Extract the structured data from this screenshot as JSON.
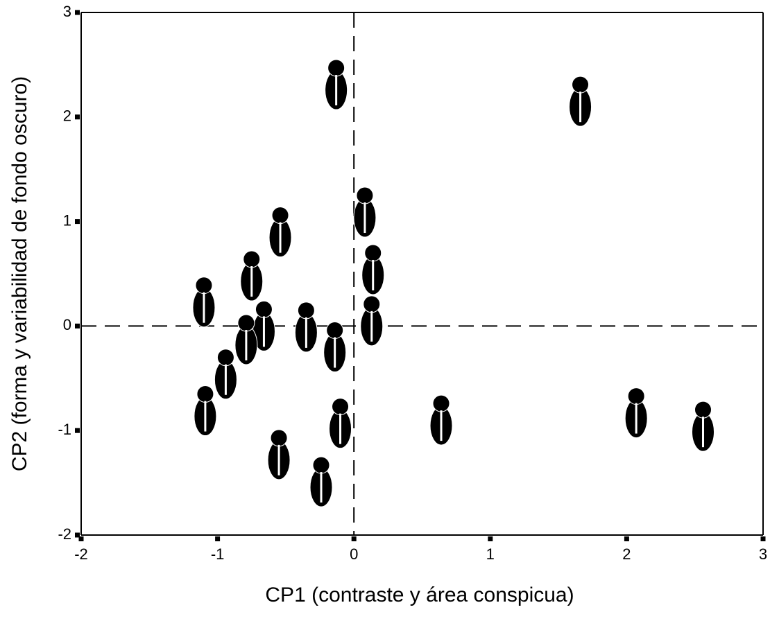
{
  "chart_data": {
    "type": "scatter",
    "x_label": "CP1 (contraste y área conspicua)",
    "y_label": "CP2 (forma y variabilidad de fondo oscuro)",
    "xlim": [
      -2,
      3
    ],
    "ylim": [
      -2,
      3
    ],
    "xticks": [
      -2,
      -1,
      0,
      1,
      2,
      3
    ],
    "yticks": [
      -2,
      -1,
      0,
      1,
      2,
      3
    ],
    "reference_x": 0,
    "reference_y": 0,
    "color": "#000000",
    "series": [
      {
        "x": [
          -0.13,
          1.66,
          -0.54,
          0.08,
          -0.75,
          0.14,
          -1.1,
          -0.35,
          -0.66,
          -0.79,
          0.13,
          -0.14,
          -0.94,
          -1.09,
          -0.1,
          -0.55,
          -0.24,
          0.64,
          2.07,
          2.56
        ],
        "values": [
          2.31,
          2.15,
          0.9,
          1.09,
          0.48,
          0.54,
          0.23,
          -0.01,
          0.0,
          -0.13,
          0.05,
          -0.2,
          -0.46,
          -0.81,
          -0.93,
          -1.23,
          -1.49,
          -0.9,
          -0.83,
          -0.96
        ]
      }
    ]
  }
}
